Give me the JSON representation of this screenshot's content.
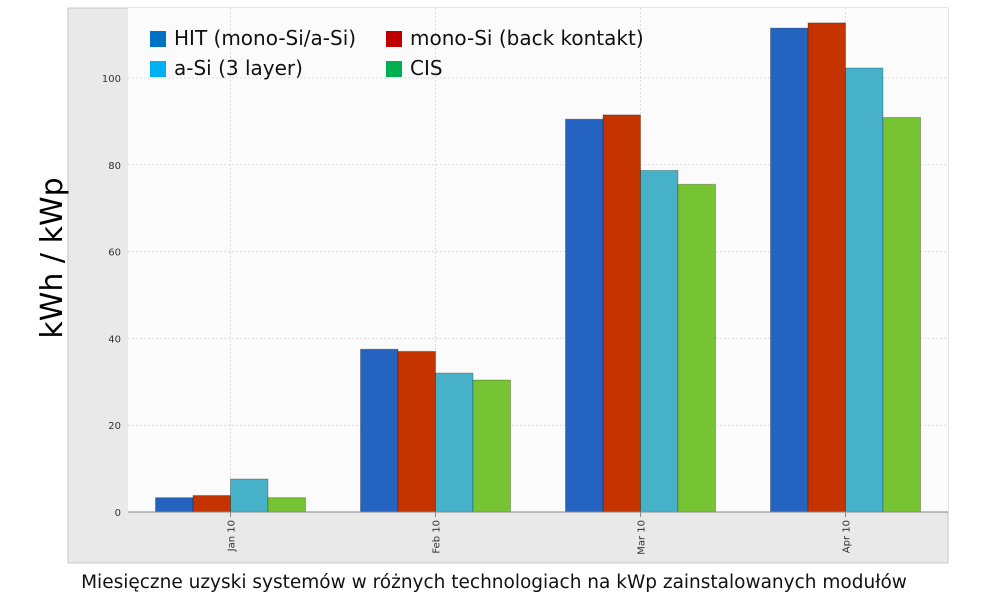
{
  "chart_data": {
    "type": "bar",
    "ylabel": "kWh / kWp",
    "categories": [
      "Jan 10",
      "Feb 10",
      "Mar 10",
      "Apr 10"
    ],
    "ylim": [
      0,
      115
    ],
    "yticks": [
      0,
      20,
      40,
      60,
      80,
      100
    ],
    "grid": true,
    "legend_position": "top-left",
    "series": [
      {
        "name": "HIT (mono-Si/a-Si)",
        "color": "#2563c1",
        "values": [
          3.3,
          37.5,
          90.5,
          111.5
        ]
      },
      {
        "name": "mono-Si (back kontakt)",
        "color": "#c53300",
        "values": [
          3.8,
          37.0,
          91.5,
          112.7
        ]
      },
      {
        "name": "a-Si (3 layer)",
        "color": "#46b1c9",
        "values": [
          7.6,
          32.0,
          78.7,
          102.3
        ]
      },
      {
        "name": "CIS",
        "color": "#76c433",
        "values": [
          3.3,
          30.4,
          75.5,
          90.9
        ]
      }
    ],
    "legend_swatch_colors": [
      "#0072c6",
      "#c00000",
      "#00b0f0",
      "#00b050"
    ]
  },
  "caption": "Miesięczne uzyski systemów w różnych technologiach na kWp zainstalowanych modułów"
}
